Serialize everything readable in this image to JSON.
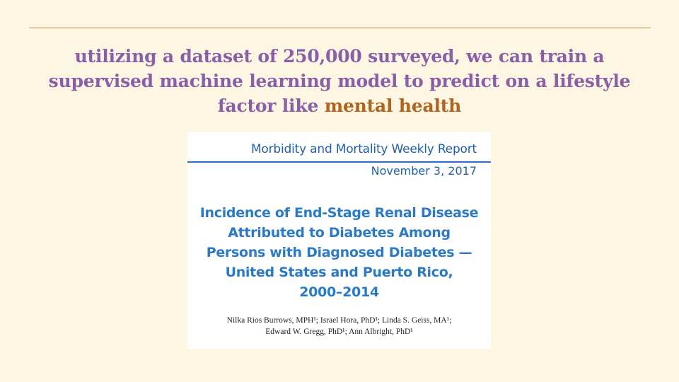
{
  "slide": {
    "headline_before": "utilizing a dataset of 250,000 surveyed, we can train a supervised machine learning model to predict on a lifestyle factor like ",
    "headline_highlight": "mental health"
  },
  "report": {
    "journal": "Morbidity and Mortality Weekly Report",
    "date": "November 3, 2017",
    "title_lines": [
      "Incidence of End-Stage Renal Disease",
      "Attributed to Diabetes Among",
      "Persons with Diagnosed Diabetes —",
      "United States and Puerto Rico,",
      "2000–2014"
    ],
    "authors_lines": [
      "Nilka Rios Burrows, MPH¹; Israel Hora, PhD¹; Linda S. Geiss, MA¹;",
      "Edward W. Gregg, PhD¹; Ann Albright, PhD¹"
    ]
  },
  "colors": {
    "background": "#fdf6e3",
    "rule": "#b98a3e",
    "headline": "#8a5fa8",
    "highlight": "#b0651e",
    "report_blue": "#1f5fae"
  }
}
